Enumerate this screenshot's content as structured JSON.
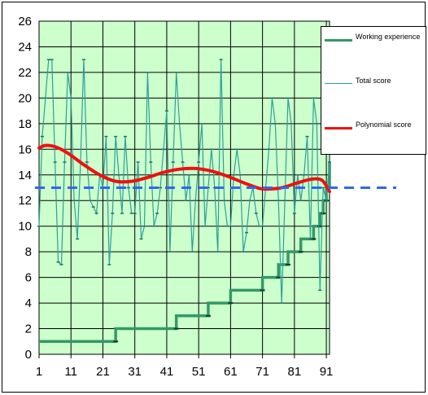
{
  "chart_data": {
    "type": "line",
    "title": "",
    "xlabel": "",
    "ylabel": "",
    "xlim": [
      1,
      92
    ],
    "ylim": [
      0,
      26
    ],
    "y_ticks": [
      0,
      2,
      4,
      6,
      8,
      10,
      12,
      14,
      16,
      18,
      20,
      22,
      24,
      26
    ],
    "x_ticks": [
      1,
      11,
      21,
      31,
      41,
      51,
      61,
      71,
      81,
      91
    ],
    "grid": true,
    "legend_position": "top-right",
    "plot_background": "#ccffcc",
    "reference_line": {
      "y": 13,
      "color": "#3366ee",
      "style": "dashed"
    },
    "series": [
      {
        "name": "Working experience",
        "color": "#339966",
        "style": "step",
        "points": [
          [
            1,
            1
          ],
          [
            25,
            1
          ],
          [
            25,
            2
          ],
          [
            44,
            2
          ],
          [
            44,
            3
          ],
          [
            54,
            3
          ],
          [
            54,
            4
          ],
          [
            61,
            4
          ],
          [
            61,
            5
          ],
          [
            71,
            5
          ],
          [
            71,
            6
          ],
          [
            76,
            6
          ],
          [
            76,
            7
          ],
          [
            79,
            7
          ],
          [
            79,
            8
          ],
          [
            83,
            8
          ],
          [
            83,
            9
          ],
          [
            87,
            9
          ],
          [
            87,
            10
          ],
          [
            89,
            10
          ],
          [
            89,
            11
          ],
          [
            90,
            11
          ],
          [
            90,
            12
          ],
          [
            91,
            12
          ],
          [
            91,
            13
          ],
          [
            92,
            13
          ],
          [
            92,
            15
          ]
        ]
      },
      {
        "name": "Total score",
        "color": "#2aa198",
        "style": "line",
        "points": [
          [
            1,
            10
          ],
          [
            2,
            17
          ],
          [
            3,
            20
          ],
          [
            4,
            23
          ],
          [
            5,
            23
          ],
          [
            6,
            15
          ],
          [
            7,
            7.2
          ],
          [
            8,
            7
          ],
          [
            9,
            15
          ],
          [
            10,
            22
          ],
          [
            11,
            20
          ],
          [
            12,
            12
          ],
          [
            13,
            9
          ],
          [
            14,
            15
          ],
          [
            15,
            23
          ],
          [
            16,
            15
          ],
          [
            17,
            12
          ],
          [
            18,
            11.5
          ],
          [
            19,
            11
          ],
          [
            20,
            14
          ],
          [
            21,
            13
          ],
          [
            22,
            17
          ],
          [
            23,
            7
          ],
          [
            24,
            11
          ],
          [
            25,
            17
          ],
          [
            26,
            14
          ],
          [
            27,
            11
          ],
          [
            28,
            17
          ],
          [
            29,
            13
          ],
          [
            30,
            11
          ],
          [
            31,
            11
          ],
          [
            32,
            15
          ],
          [
            33,
            9
          ],
          [
            34,
            10
          ],
          [
            35,
            22
          ],
          [
            36,
            15
          ],
          [
            37,
            10
          ],
          [
            38,
            11
          ],
          [
            39,
            13
          ],
          [
            40,
            16
          ],
          [
            41,
            19
          ],
          [
            42,
            8
          ],
          [
            43,
            15
          ],
          [
            44,
            22
          ],
          [
            45,
            18
          ],
          [
            46,
            15
          ],
          [
            47,
            12
          ],
          [
            48,
            14
          ],
          [
            49,
            8
          ],
          [
            50,
            12
          ],
          [
            51,
            15
          ],
          [
            52,
            18
          ],
          [
            53,
            10
          ],
          [
            54,
            13
          ],
          [
            55,
            16
          ],
          [
            56,
            13
          ],
          [
            57,
            8
          ],
          [
            58,
            23
          ],
          [
            59,
            12
          ],
          [
            60,
            10
          ],
          [
            61,
            10
          ],
          [
            62,
            14
          ],
          [
            63,
            16
          ],
          [
            64,
            14
          ],
          [
            65,
            8
          ],
          [
            66,
            9.5
          ],
          [
            67,
            12
          ],
          [
            68,
            13
          ],
          [
            69,
            11
          ],
          [
            70,
            10
          ],
          [
            71,
            10
          ],
          [
            72,
            13
          ],
          [
            73,
            16
          ],
          [
            74,
            20
          ],
          [
            75,
            18
          ],
          [
            76,
            12
          ],
          [
            77,
            4
          ],
          [
            78,
            12
          ],
          [
            79,
            20
          ],
          [
            80,
            18
          ],
          [
            81,
            11
          ],
          [
            82,
            14
          ],
          [
            83,
            12
          ],
          [
            84,
            14
          ],
          [
            85,
            17
          ],
          [
            86,
            9
          ],
          [
            87,
            20
          ],
          [
            88,
            18
          ],
          [
            89,
            5
          ],
          [
            90,
            13
          ],
          [
            91,
            12
          ],
          [
            92,
            15
          ]
        ]
      },
      {
        "name": "Polynomial score",
        "color": "#ee1111",
        "style": "smooth",
        "points": [
          [
            1,
            16.1
          ],
          [
            3,
            16.3
          ],
          [
            6,
            16.2
          ],
          [
            10,
            15.7
          ],
          [
            15,
            14.8
          ],
          [
            20,
            14
          ],
          [
            25,
            13.5
          ],
          [
            30,
            13.5
          ],
          [
            35,
            13.8
          ],
          [
            40,
            14.2
          ],
          [
            45,
            14.45
          ],
          [
            50,
            14.5
          ],
          [
            55,
            14.3
          ],
          [
            60,
            13.9
          ],
          [
            65,
            13.4
          ],
          [
            70,
            12.95
          ],
          [
            73,
            12.9
          ],
          [
            77,
            13
          ],
          [
            81,
            13.3
          ],
          [
            85,
            13.6
          ],
          [
            88,
            13.7
          ],
          [
            90,
            13.5
          ],
          [
            92,
            12.7
          ]
        ]
      }
    ]
  }
}
